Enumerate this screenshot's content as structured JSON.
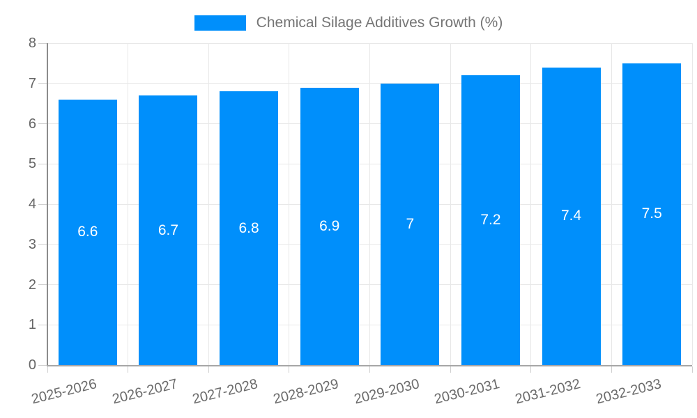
{
  "legend": {
    "label": "Chemical Silage Additives Growth (%)"
  },
  "colors": {
    "bar": "#008FFB",
    "grid": "#e8e8e8",
    "axis_y_line": "#8c8c8c",
    "axis_x_line": "#a6a6a6",
    "tick_mark": "#d0d0d0",
    "ytick_text": "#666666",
    "xtick_text": "#6b6b6b",
    "legend_text": "#757575",
    "value_label_text": "#ffffff",
    "background": "#ffffff"
  },
  "chart_data": {
    "type": "bar",
    "title": "Chemical Silage Additives Growth (%)",
    "categories": [
      "2025-2026",
      "2026-2027",
      "2027-2028",
      "2028-2029",
      "2029-2030",
      "2030-2031",
      "2031-2032",
      "2032-2033"
    ],
    "values": [
      6.6,
      6.7,
      6.8,
      6.9,
      7,
      7.2,
      7.4,
      7.5
    ],
    "xlabel": "",
    "ylabel": "",
    "ylim": [
      0,
      8
    ],
    "ytick_step": 1,
    "yticks": [
      0,
      1,
      2,
      3,
      4,
      5,
      6,
      7,
      8
    ],
    "grid": true,
    "legend_position": "top",
    "bar_value_labels_inside": true
  }
}
